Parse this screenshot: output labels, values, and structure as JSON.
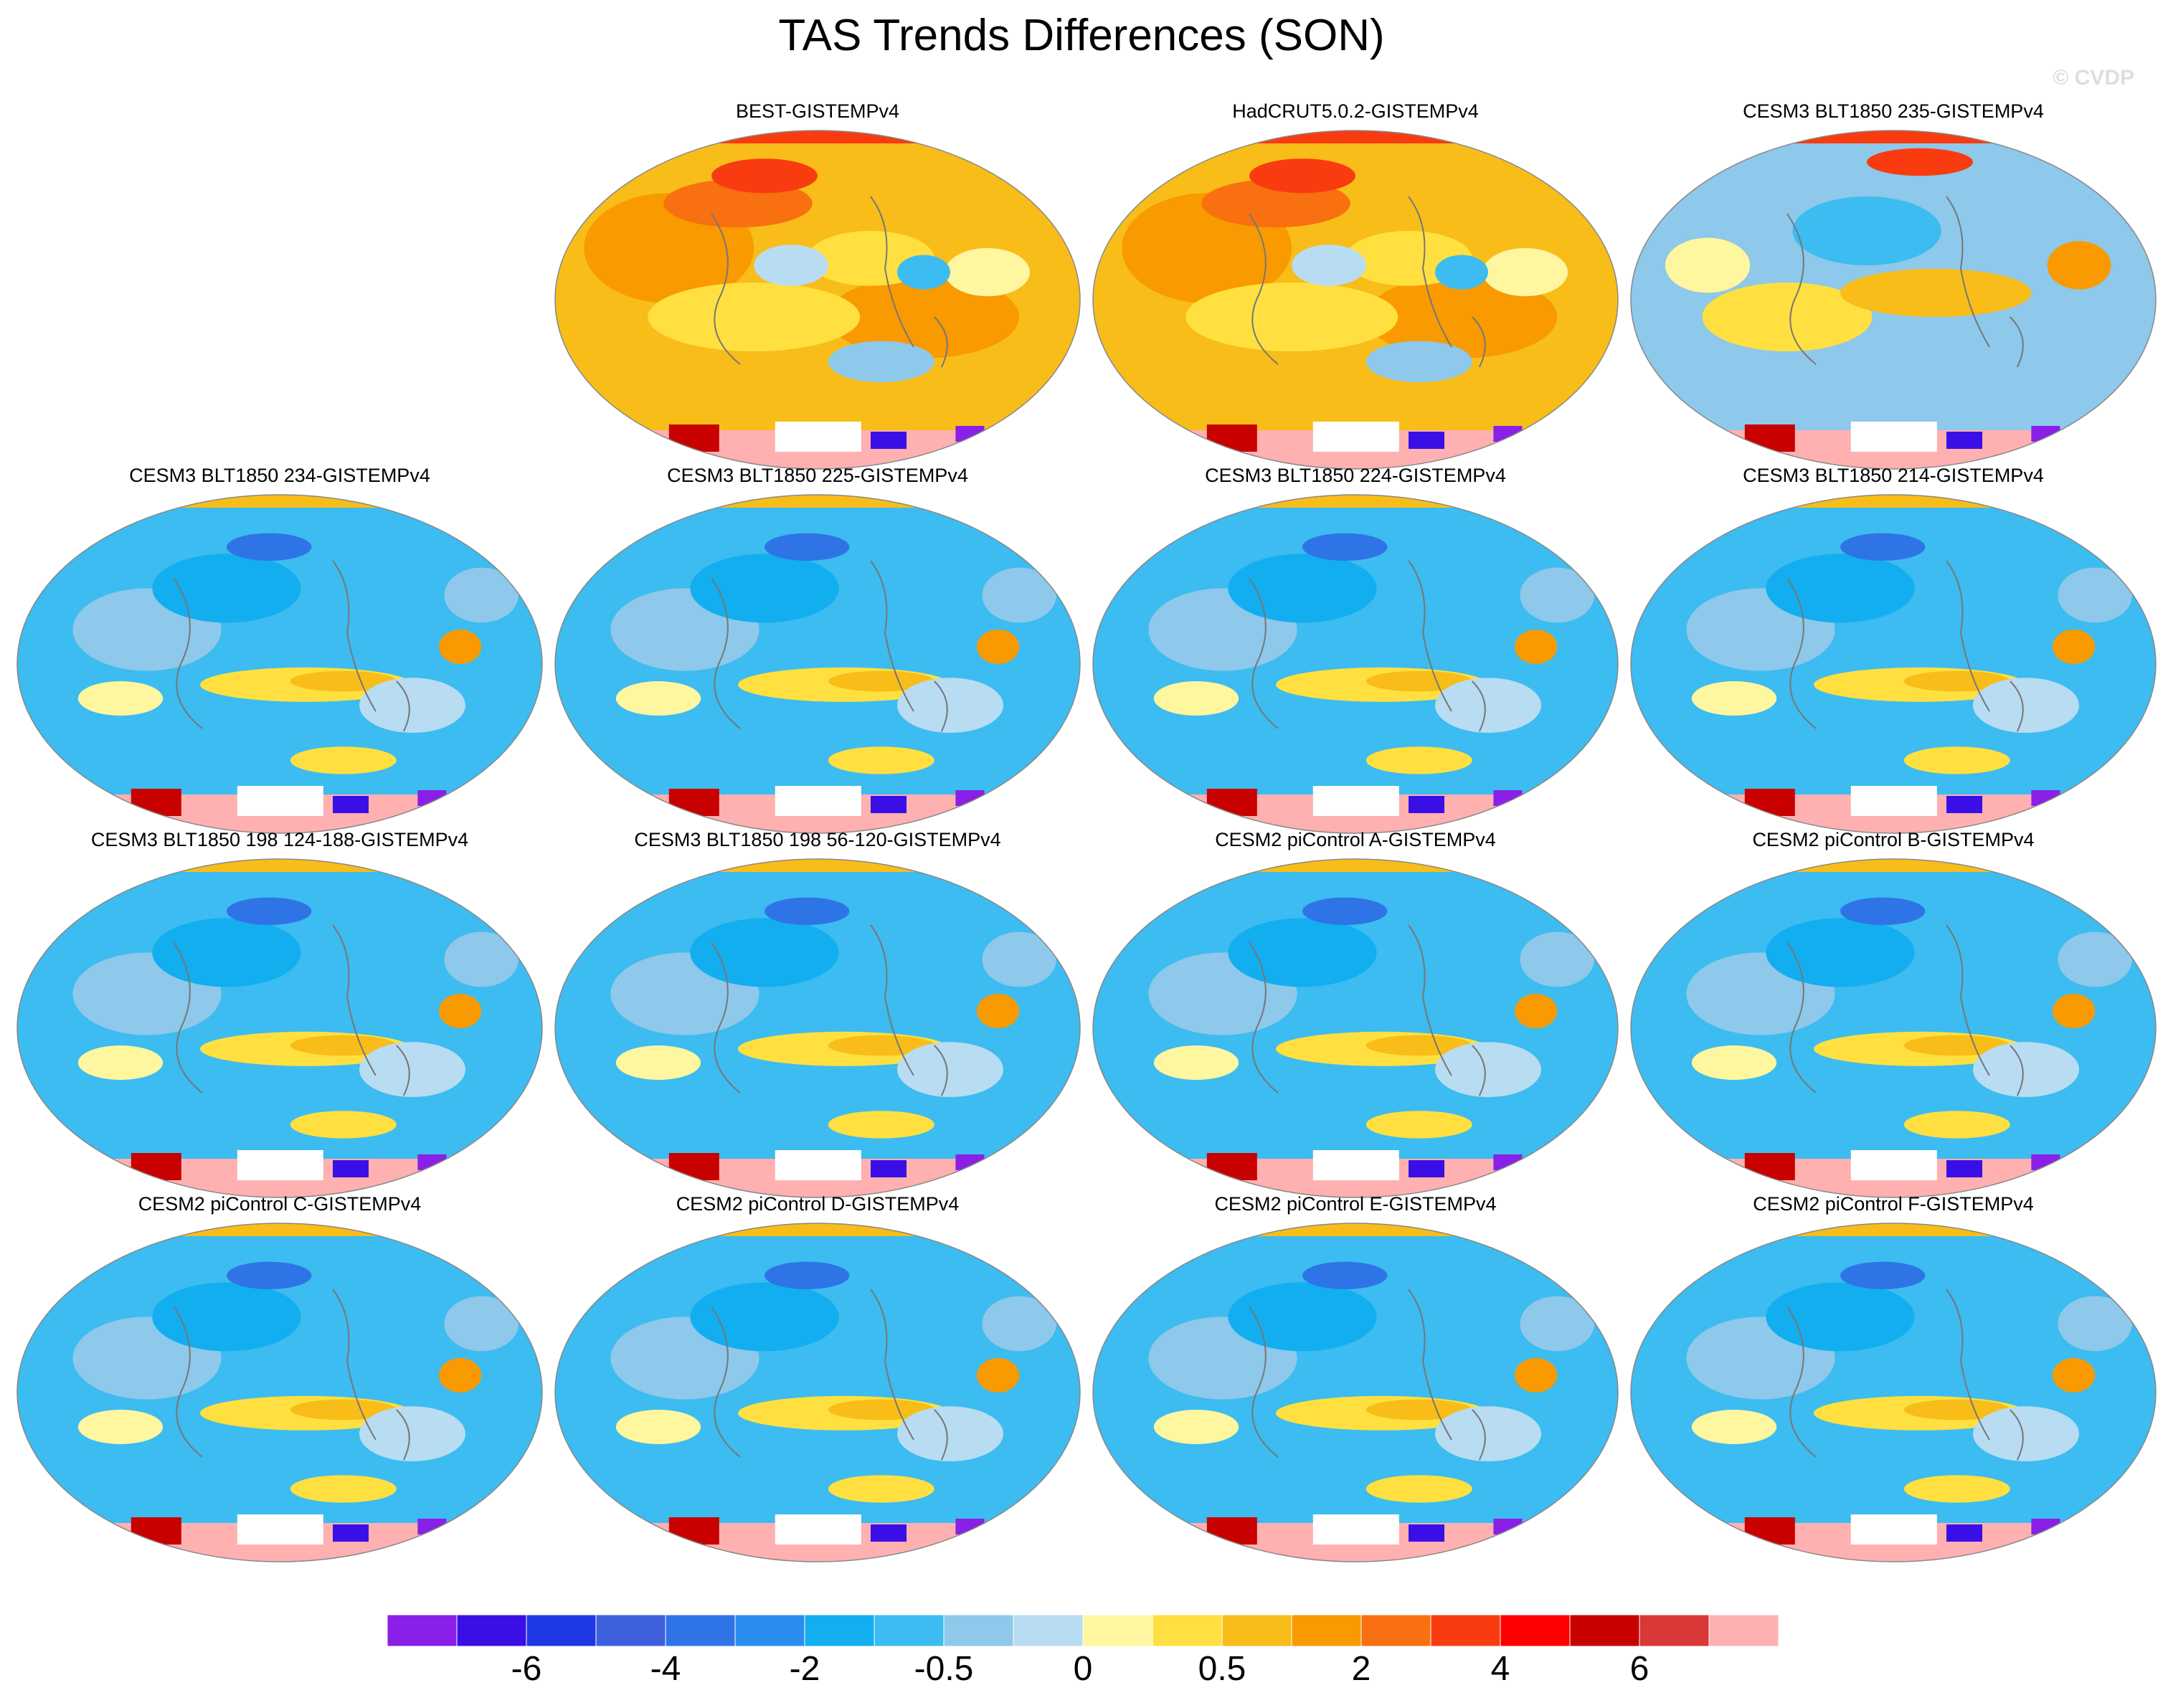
{
  "title": "TAS Trends Differences (SON)",
  "watermark": "© CVDP",
  "panels": [
    {
      "title": "BEST-GISTEMPv4",
      "pattern": "warm"
    },
    {
      "title": "HadCRUT5.0.2-GISTEMPv4",
      "pattern": "warm"
    },
    {
      "title": "CESM3 BLT1850 235-GISTEMPv4",
      "pattern": "mixed"
    },
    {
      "title": "CESM3 BLT1850 234-GISTEMPv4",
      "pattern": "cool"
    },
    {
      "title": "CESM3 BLT1850 225-GISTEMPv4",
      "pattern": "cool"
    },
    {
      "title": "CESM3 BLT1850 224-GISTEMPv4",
      "pattern": "cool"
    },
    {
      "title": "CESM3 BLT1850 214-GISTEMPv4",
      "pattern": "cool"
    },
    {
      "title": "CESM3 BLT1850 198 124-188-GISTEMPv4",
      "pattern": "cool"
    },
    {
      "title": "CESM3 BLT1850 198 56-120-GISTEMPv4",
      "pattern": "cool"
    },
    {
      "title": "CESM2 piControl A-GISTEMPv4",
      "pattern": "cool"
    },
    {
      "title": "CESM2 piControl B-GISTEMPv4",
      "pattern": "cool"
    },
    {
      "title": "CESM2 piControl C-GISTEMPv4",
      "pattern": "cool"
    },
    {
      "title": "CESM2 piControl D-GISTEMPv4",
      "pattern": "cool"
    },
    {
      "title": "CESM2 piControl E-GISTEMPv4",
      "pattern": "cool"
    },
    {
      "title": "CESM2 piControl F-GISTEMPv4",
      "pattern": "cool"
    }
  ],
  "colorbar": {
    "colors": [
      "#8a1fe8",
      "#3a0fe6",
      "#1f38e6",
      "#3f60dc",
      "#2f74e6",
      "#2a8ef0",
      "#12aef0",
      "#3cbcf0",
      "#8ec8ea",
      "#b8dcf2",
      "#fff6a0",
      "#ffe040",
      "#f8bd18",
      "#f89a00",
      "#f87010",
      "#f83c10",
      "#ff0000",
      "#c80000",
      "#d83838",
      "#ffb0b0"
    ],
    "labels": [
      "-6",
      "-4",
      "-2",
      "-0.5",
      "0",
      "0.5",
      "2",
      "4",
      "6"
    ]
  }
}
